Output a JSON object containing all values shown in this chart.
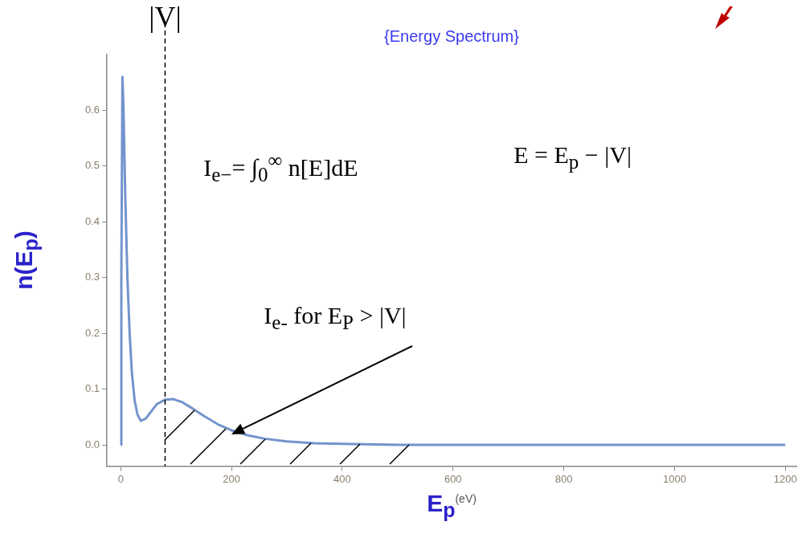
{
  "chart_data": {
    "type": "line",
    "title": "{Energy Spectrum}",
    "xlabel": "E$_{p}$$^{(eV)}$",
    "ylabel": "n(E$_{p}$)",
    "x": [
      0,
      1,
      3,
      5,
      8,
      12,
      16,
      20,
      25,
      30,
      36,
      45,
      55,
      65,
      80,
      95,
      110,
      130,
      150,
      175,
      200,
      230,
      260,
      300,
      350,
      400,
      500,
      600,
      800,
      1000,
      1200
    ],
    "series": [
      {
        "color": "#7294cc",
        "values": [
          0,
          0.3,
          0.66,
          0.6,
          0.45,
          0.3,
          0.2,
          0.13,
          0.08,
          0.055,
          0.043,
          0.047,
          0.06,
          0.073,
          0.081,
          0.082,
          0.077,
          0.065,
          0.052,
          0.037,
          0.026,
          0.017,
          0.011,
          0.006,
          0.003,
          0.002,
          0,
          0,
          0,
          0,
          0
        ]
      }
    ],
    "xlim": [
      -25,
      1220
    ],
    "ylim": [
      -0.038,
      0.7
    ],
    "xticks": [
      0,
      200,
      400,
      600,
      800,
      1000,
      1200
    ],
    "yticks": [
      {
        "value": 0,
        "label": "0.0"
      },
      0.1,
      0.2,
      0.3,
      0.4,
      0.5,
      0.6
    ],
    "ref_lines": [
      {
        "axis": "x",
        "value": 80,
        "label": "|V|",
        "color": "#000000",
        "line_style": "dashed"
      }
    ],
    "annotations": [
      "I$_{e−}$= ∫$_{0}$$^{∞}$ n[E]dE",
      "E = E$_{p}$ − |V|",
      "I$_{e-}$  for E$_{P}$ > |V|"
    ],
    "grid": false,
    "legend": false,
    "marker": "none",
    "line_style": "solid"
  }
}
